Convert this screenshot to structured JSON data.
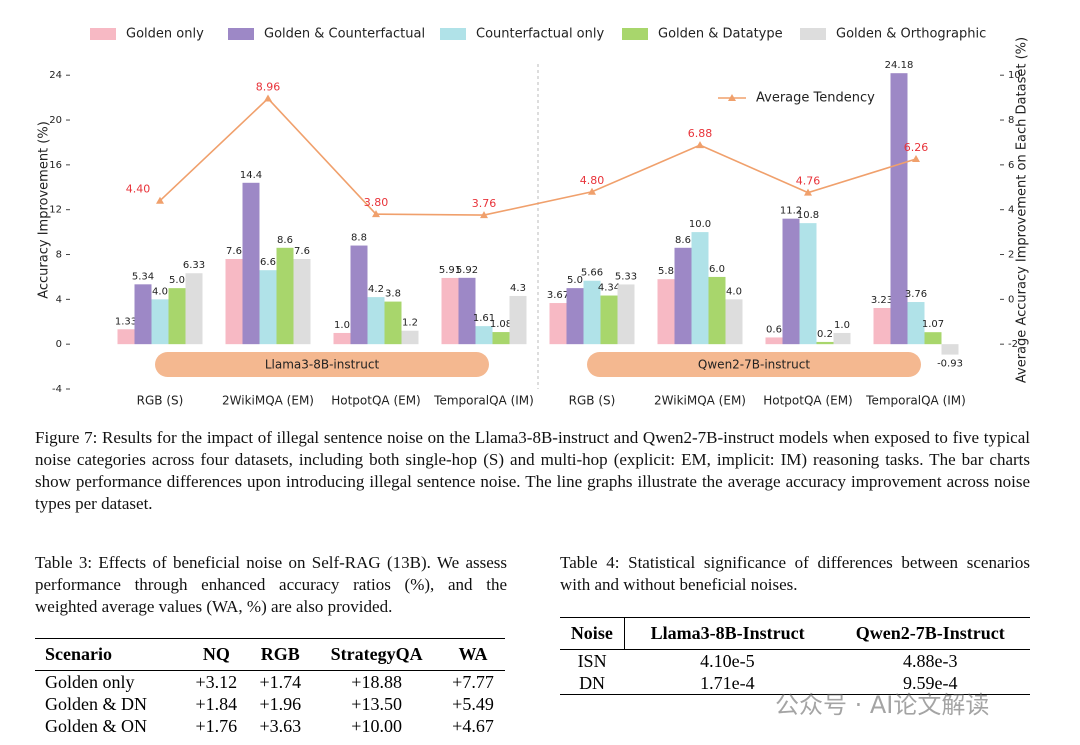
{
  "chart_data": {
    "type": "bar",
    "ylabel": "Accuracy Improvement (%)",
    "y2label": "Average Accuracy Improvement on Each Dataset (%)",
    "categories": [
      "RGB (S)",
      "2WikiMQA (EM)",
      "HotpotQA (EM)",
      "TemporalQA (IM)",
      "RGB (S)",
      "2WikiMQA (EM)",
      "HotpotQA (EM)",
      "TemporalQA (IM)"
    ],
    "groups": [
      "Llama3-8B-instruct",
      "Qwen2-7B-instruct"
    ],
    "ylim": [
      -4,
      25
    ],
    "yticks": [
      -4,
      0,
      4,
      8,
      12,
      16,
      20,
      24
    ],
    "y2lim": [
      -4,
      10.5
    ],
    "y2ticks": [
      -2,
      0,
      2,
      4,
      6,
      8,
      10
    ],
    "series": [
      {
        "name": "Golden only",
        "color": "#f7b9c4",
        "values": [
          1.33,
          7.6,
          1.0,
          5.91,
          3.67,
          5.8,
          0.6,
          3.23
        ],
        "value_labels": [
          "1.33",
          "7.6",
          "1.0",
          "5.91",
          "3.67",
          "5.8",
          "0.6",
          "3.23"
        ]
      },
      {
        "name": "Golden & Counterfactual",
        "color": "#9d88c6",
        "values": [
          5.34,
          14.4,
          8.8,
          5.92,
          5.0,
          8.6,
          11.2,
          24.18
        ],
        "value_labels": [
          "5.34",
          "14.4",
          "8.8",
          "5.92",
          "5.0",
          "8.6",
          "11.2",
          "24.18"
        ]
      },
      {
        "name": "Counterfactual only",
        "color": "#b0e2e8",
        "values": [
          4.0,
          6.6,
          4.2,
          1.61,
          5.66,
          10.0,
          10.8,
          3.76
        ],
        "value_labels": [
          "4.0",
          "6.6",
          "4.2",
          "1.61",
          "5.66",
          "10.0",
          "10.8",
          "3.76"
        ]
      },
      {
        "name": "Golden & Datatype",
        "color": "#a8d66c",
        "values": [
          5.0,
          8.6,
          3.8,
          1.08,
          4.34,
          6.0,
          0.2,
          1.07
        ],
        "value_labels": [
          "5.0",
          "8.6",
          "3.8",
          "1.08",
          "4.34",
          "6.0",
          "0.2",
          "1.07"
        ]
      },
      {
        "name": "Golden & Orthographic",
        "color": "#dddddd",
        "values": [
          6.33,
          7.6,
          1.2,
          4.3,
          5.33,
          4.0,
          1.0,
          -0.93
        ],
        "value_labels": [
          "6.33",
          "7.6",
          "1.2",
          "4.3",
          "5.33",
          "4.0",
          "1.0",
          "-0.93"
        ]
      },
      {
        "name": "Average Tendency",
        "type": "line",
        "axis": "y2",
        "color": "#f0a06c",
        "label_color": "#e8333a",
        "values": [
          4.4,
          8.96,
          3.8,
          3.76,
          4.8,
          6.88,
          4.76,
          6.26
        ],
        "value_labels": [
          "4.40",
          "8.96",
          "3.80",
          "3.76",
          "4.80",
          "6.88",
          "4.76",
          "6.26"
        ]
      }
    ]
  },
  "figure_caption": "Figure 7: Results for the impact of illegal sentence noise on the Llama3-8B-instruct and Qwen2-7B-instruct models when exposed to five typical noise categories across four datasets, including both single-hop (S) and multi-hop (explicit: EM, implicit: IM) reasoning tasks. The bar charts show performance differences upon introducing illegal sentence noise. The line graphs illustrate the average accuracy improvement across noise types per dataset.",
  "table3": {
    "caption": "Table 3: Effects of beneficial noise on Self-RAG (13B). We assess performance through enhanced accuracy ratios (%), and the weighted average values (WA, %) are also provided.",
    "header": [
      "Scenario",
      "NQ",
      "RGB",
      "StrategyQA",
      "WA"
    ],
    "rows": [
      [
        "Golden only",
        "+3.12",
        "+1.74",
        "+18.88",
        "+7.77"
      ],
      [
        "Golden & DN",
        "+1.84",
        "+1.96",
        "+13.50",
        "+5.49"
      ],
      [
        "Golden & ON",
        "+1.76",
        "+3.63",
        "+10.00",
        "+4.67"
      ]
    ]
  },
  "table4": {
    "caption": "Table 4: Statistical significance of differences between scenarios with and without beneficial noises.",
    "header": [
      "Noise",
      "Llama3-8B-Instruct",
      "Qwen2-7B-Instruct"
    ],
    "rows": [
      [
        "ISN",
        "4.10e-5",
        "4.88e-3"
      ],
      [
        "DN",
        "1.71e-4",
        "9.59e-4"
      ]
    ]
  },
  "watermark": "公众号 · AI论文解读"
}
